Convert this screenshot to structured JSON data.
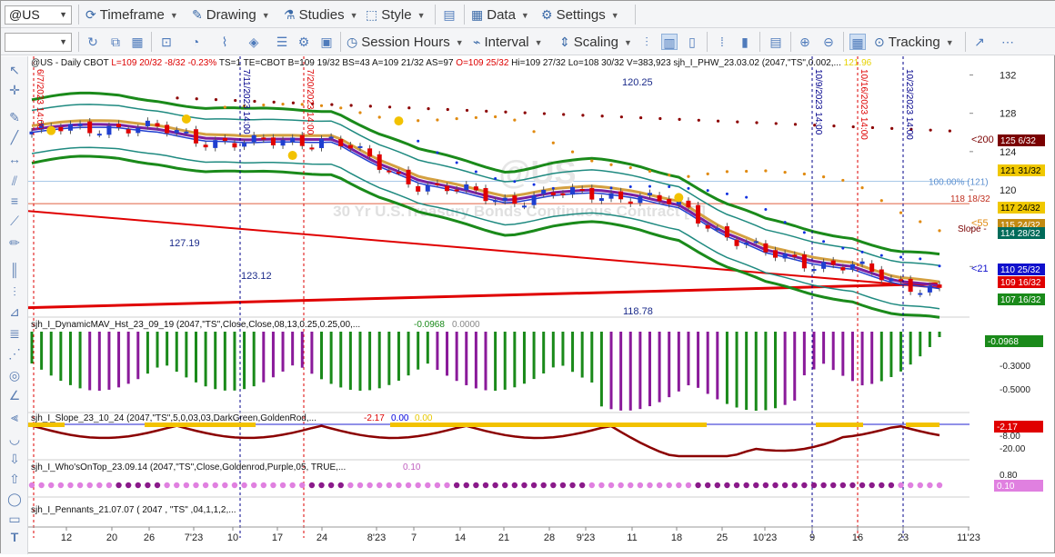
{
  "symbol_box": {
    "value": "@US"
  },
  "toolbar1": {
    "timeframe": "Timeframe",
    "drawing": "Drawing",
    "studies": "Studies",
    "style": "Style",
    "data": "Data",
    "settings": "Settings"
  },
  "toolbar2": {
    "session_hours": "Session Hours",
    "interval": "Interval",
    "scaling": "Scaling",
    "tracking": "Tracking"
  },
  "header": {
    "segments": [
      {
        "text": "@US - Daily  CBOT",
        "color": "#111111"
      },
      {
        "text": "L=109 20/32",
        "color": "#dd0000"
      },
      {
        "text": "-8/32",
        "color": "#dd0000"
      },
      {
        "text": "-0.23%",
        "color": "#dd0000"
      },
      {
        "text": "TS=1",
        "color": "#111111"
      },
      {
        "text": "TE=CBOT",
        "color": "#111111"
      },
      {
        "text": "B=109 19/32",
        "color": "#111111"
      },
      {
        "text": "BS=43",
        "color": "#111111"
      },
      {
        "text": "A=109 21/32",
        "color": "#111111"
      },
      {
        "text": "AS=97",
        "color": "#111111"
      },
      {
        "text": "O=109 25/32",
        "color": "#dd0000"
      },
      {
        "text": "Hi=109 27/32",
        "color": "#111111"
      },
      {
        "text": "Lo=108 30/32",
        "color": "#111111"
      },
      {
        "text": "V=383,923",
        "color": "#111111"
      },
      {
        "text": "sjh_I_PHW_23.03.02 (2047,\"TS\",0.002,...",
        "color": "#111111"
      },
      {
        "text": "121.96",
        "color": "#e6d200"
      }
    ]
  },
  "watermark": {
    "symbol": "@US",
    "name": "30 Yr U.S.Treasury Bonds Continuous Contract [D]"
  },
  "price_axis": {
    "ticks": [
      "132",
      "128",
      "124",
      "120",
      "116",
      "112"
    ]
  },
  "price_tags": [
    {
      "text": "125 6/32",
      "bg": "#7a0000",
      "fg": "#ffffff"
    },
    {
      "text": "121 31/32",
      "bg": "#f0c800",
      "fg": "#000000"
    },
    {
      "text": "117 24/32",
      "bg": "#f0c800",
      "fg": "#000000"
    },
    {
      "text": "115 24/32",
      "bg": "#c28a12",
      "fg": "#ffffff"
    },
    {
      "text": "114 28/32",
      "bg": "#006b5a",
      "fg": "#ffffff"
    },
    {
      "text": "110 25/32",
      "bg": "#1010cc",
      "fg": "#ffffff"
    },
    {
      "text": "109 16/32",
      "bg": "#e00000",
      "fg": "#ffffff"
    },
    {
      "text": "107 16/32",
      "bg": "#1a8a1a",
      "fg": "#ffffff"
    }
  ],
  "chart_labels": {
    "fib_pct": "100.00% (121)",
    "level_118": "118 18/32",
    "ma200": "<200",
    "ma55": "<55",
    "slope": "Slope -",
    "ma21": "<21",
    "v12025": "120.25",
    "v12719": "127.19",
    "v12312": "123.12",
    "v11878": "118.78"
  },
  "vlines": [
    {
      "label": "6/7/2023 14:00",
      "color": "#dd0000"
    },
    {
      "label": "7/11/2023 14:00",
      "color": "#00008b"
    },
    {
      "label": "7/20/2023 14:00",
      "color": "#dd0000"
    },
    {
      "label": "10/9/2023 14:00",
      "color": "#00008b"
    },
    {
      "label": "10/16/2023 14:00",
      "color": "#dd0000"
    },
    {
      "label": "10/23/2023 14:00",
      "color": "#00008b"
    }
  ],
  "x_axis": {
    "labels": [
      "12",
      "20",
      "26",
      "7'23",
      "10",
      "17",
      "24",
      "8'23",
      "7",
      "14",
      "21",
      "28",
      "9'23",
      "11",
      "18",
      "25",
      "10'23",
      "9",
      "16",
      "23",
      "11'23"
    ]
  },
  "panels": {
    "dmav": {
      "title": "sjh_I_DynamicMAV_Hst_23_09_19 (2047,\"TS\",Close,Close,08,13,0.25,0.25,00,...",
      "value": "-0.0968",
      "value2": "0.0000",
      "axis": [
        "-0.3000",
        "-0.5000"
      ],
      "tag": "-0.0968"
    },
    "slope": {
      "title": "sjh_I_Slope_23_10_24 (2047,\"TS\",5,0,03,03,DarkGreen,GoldenRod,...",
      "value": "-2.17",
      "value2": "0.00",
      "value3": "0.00",
      "axis": [
        "-8.00",
        "-20.00"
      ],
      "tag": "-2.17"
    },
    "wot": {
      "title": "sjh_I_Who'sOnTop_23.09.14 (2047,\"TS\",Close,Goldenrod,Purple,05,  TRUE,...",
      "value": "0.10",
      "axis": [
        "0.80"
      ],
      "tag": "0.10"
    },
    "pennants": {
      "title": "sjh_I_Pennants_21.07.07 (  2047 ,  \"TS\" ,04,1,1,2,..."
    }
  },
  "chart_data": {
    "type": "line",
    "title": "@US - Daily CBOT",
    "x": [
      "6/7",
      "6/12",
      "6/20",
      "6/26",
      "7/3",
      "7/10",
      "7/17",
      "7/24",
      "7/31",
      "8/7",
      "8/14",
      "8/21",
      "8/28",
      "9/4",
      "9/11",
      "9/18",
      "9/25",
      "10/2",
      "10/9",
      "10/16",
      "10/23",
      "10/27"
    ],
    "series": [
      {
        "name": "Close",
        "values": [
          126.1,
          126.4,
          126.6,
          126.3,
          125.2,
          124.8,
          125.1,
          125.3,
          122.6,
          120.5,
          119.8,
          118.9,
          119.5,
          119.6,
          119.2,
          118.4,
          115.4,
          113.3,
          112.4,
          112.0,
          110.3,
          109.6
        ]
      }
    ],
    "ylim": [
      107,
      133
    ]
  }
}
